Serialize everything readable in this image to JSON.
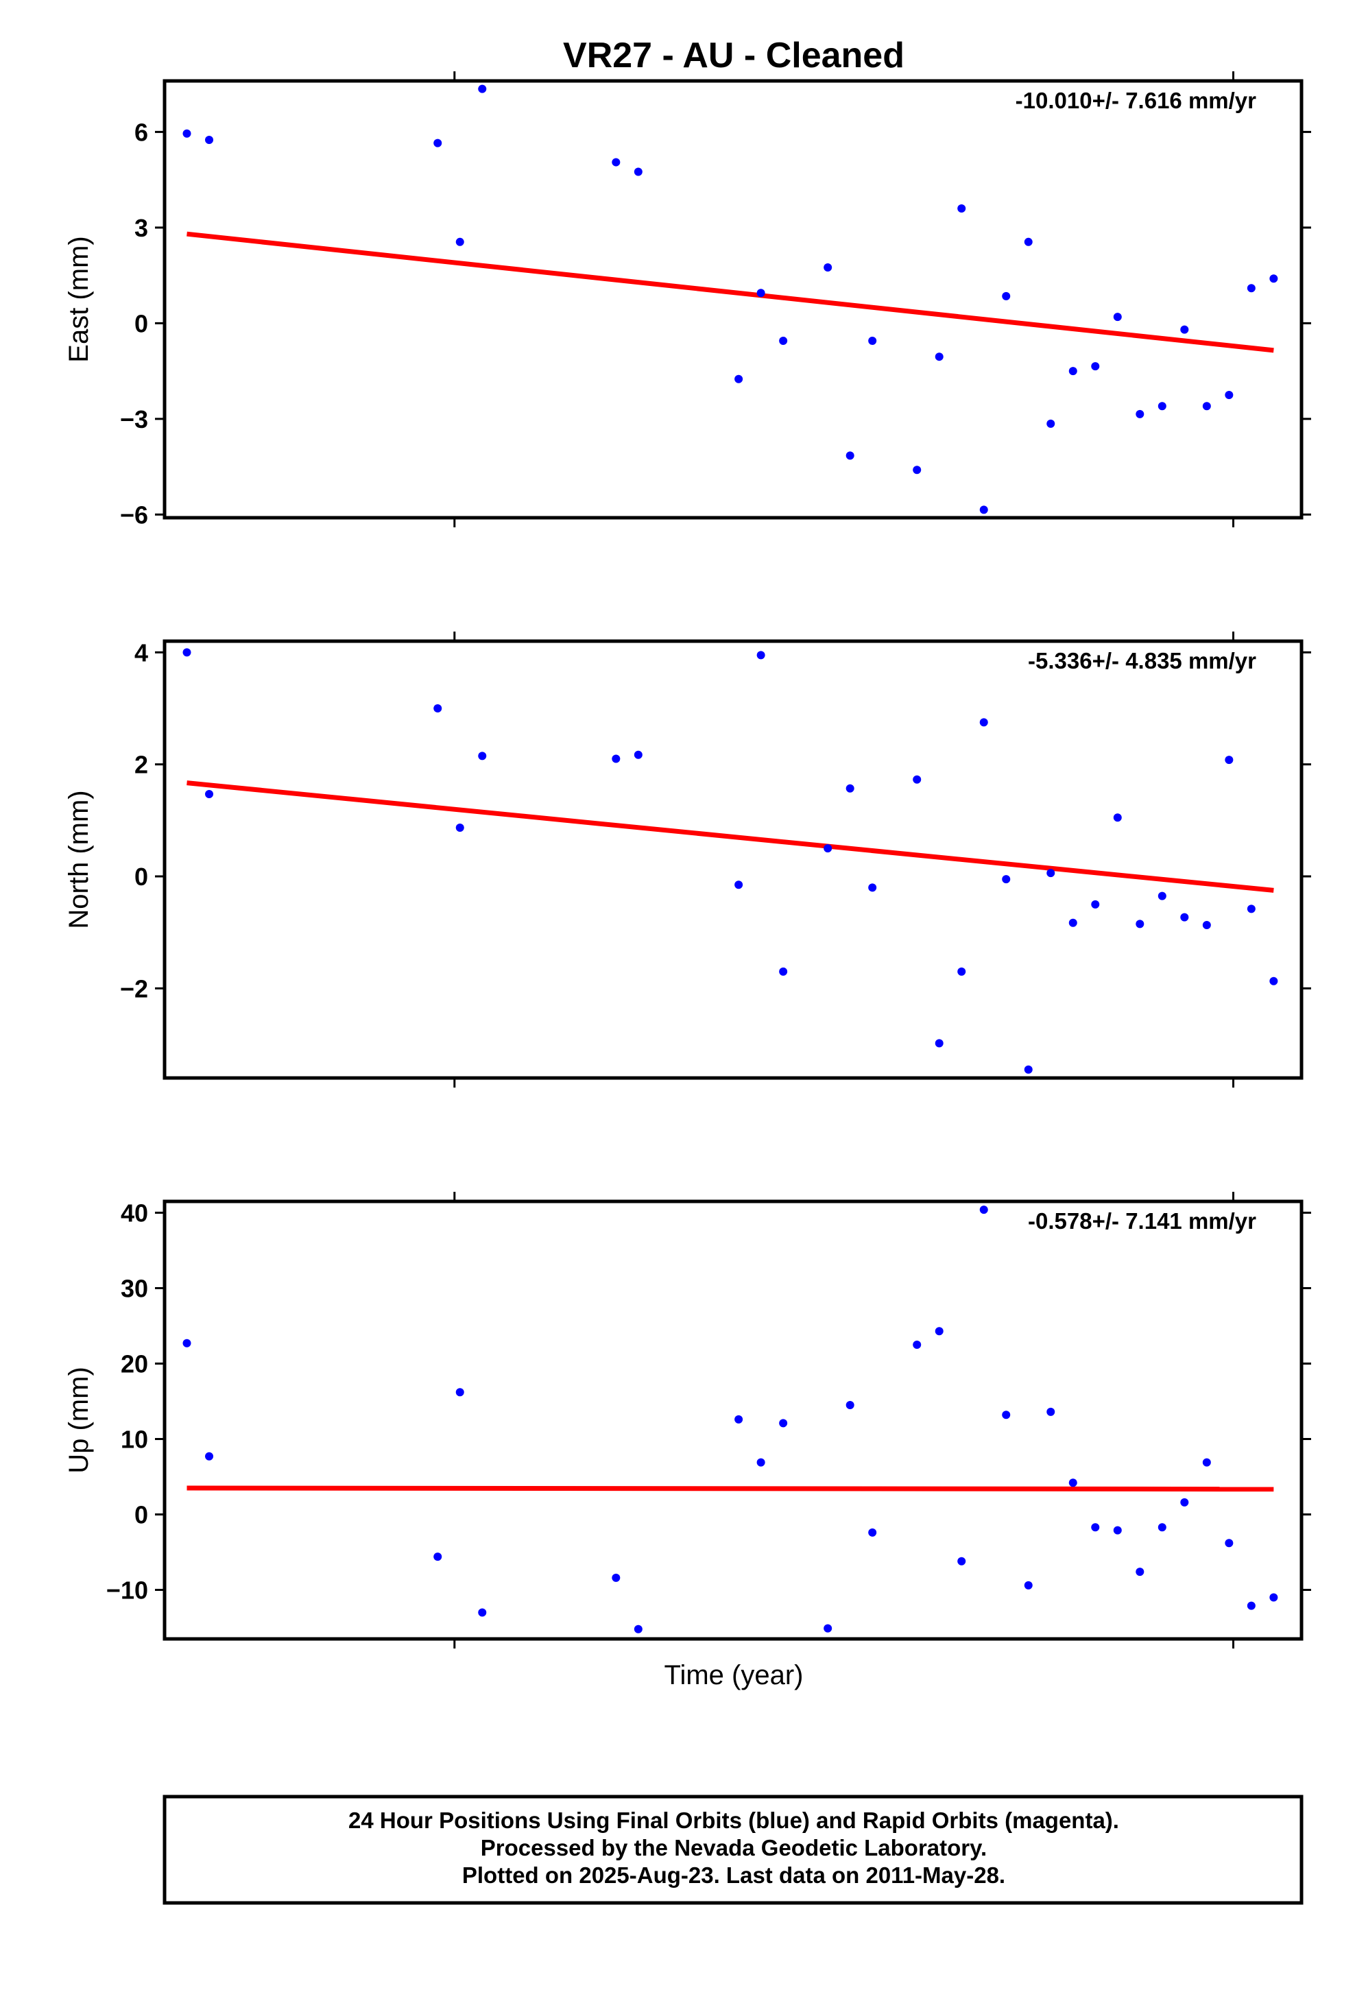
{
  "chart_data": {
    "title": "VR27  - AU - Cleaned",
    "type": "scatter",
    "xlabel": "Time (year)",
    "x": [
      0.0,
      0.02,
      0.225,
      0.245,
      0.265,
      0.385,
      0.405,
      0.495,
      0.515,
      0.535,
      0.575,
      0.595,
      0.615,
      0.655,
      0.675,
      0.695,
      0.715,
      0.735,
      0.755,
      0.775,
      0.795,
      0.815,
      0.835,
      0.855,
      0.875,
      0.895,
      0.915,
      0.935,
      0.955,
      0.975
    ],
    "xlim": [
      -0.02,
      1.0
    ],
    "panels": [
      {
        "name": "east",
        "ylabel": "East (mm)",
        "rate": "-10.010+/- 7.616 mm/yr",
        "ylim": [
          -6.1,
          7.6
        ],
        "yticks": [
          6,
          3,
          0,
          -3,
          -6
        ],
        "yticklabels": [
          "6",
          "3",
          "0",
          "−3",
          "−6"
        ],
        "series": [
          {
            "values": [
              5.95,
              5.75,
              5.65,
              2.55,
              7.35,
              5.05,
              4.75,
              -1.75,
              0.95,
              -0.55,
              1.75,
              -4.15,
              -0.55,
              -4.6,
              -1.05,
              3.6,
              -5.85,
              0.85,
              2.55,
              -3.15,
              -1.5,
              -1.35,
              0.2,
              -2.85,
              -2.6,
              -0.2,
              -2.6,
              -2.25,
              1.1,
              1.4
            ]
          }
        ],
        "trend": [
          2.8,
          -0.85
        ]
      },
      {
        "name": "north",
        "ylabel": "North (mm)",
        "rate": "-5.336+/- 4.835 mm/yr",
        "ylim": [
          -3.6,
          4.2
        ],
        "yticks": [
          4,
          2,
          0,
          -2
        ],
        "yticklabels": [
          "4",
          "2",
          "0",
          "−2"
        ],
        "series": [
          {
            "values": [
              4.0,
              1.47,
              3.0,
              0.87,
              2.15,
              2.1,
              2.17,
              -0.15,
              3.95,
              -1.7,
              0.5,
              1.57,
              -0.2,
              1.73,
              -2.98,
              -1.7,
              2.75,
              -0.05,
              -3.45,
              0.06,
              -0.83,
              -0.5,
              1.05,
              -0.85,
              -0.35,
              -0.73,
              -0.87,
              2.08,
              -0.58,
              -1.87
            ]
          }
        ],
        "trend": [
          1.67,
          -0.25
        ]
      },
      {
        "name": "up",
        "ylabel": "Up (mm)",
        "rate": "-0.578+/- 7.141 mm/yr",
        "ylim": [
          -16.5,
          41.5
        ],
        "yticks": [
          40,
          30,
          20,
          10,
          0,
          -10
        ],
        "yticklabels": [
          "40",
          "30",
          "20",
          "10",
          "0",
          "−10"
        ],
        "series": [
          {
            "values": [
              22.7,
              7.7,
              -5.6,
              16.2,
              -13.0,
              -8.4,
              -15.2,
              12.6,
              6.9,
              12.1,
              -15.1,
              14.5,
              -2.4,
              22.5,
              24.3,
              -6.2,
              40.4,
              13.2,
              -9.4,
              13.6,
              4.2,
              -1.7,
              -2.1,
              -7.6,
              -1.7,
              1.6,
              6.9,
              -3.8,
              -12.1,
              -11.0
            ]
          }
        ],
        "trend": [
          3.5,
          3.35
        ]
      }
    ],
    "point_color": "#0000ff",
    "trend_color": "#ff0000"
  },
  "footer": {
    "line1": "24 Hour Positions Using Final Orbits (blue) and Rapid Orbits (magenta).",
    "line2": "Processed by the Nevada Geodetic Laboratory.",
    "line3": "Plotted on 2025-Aug-23. Last data on 2011-May-28."
  }
}
